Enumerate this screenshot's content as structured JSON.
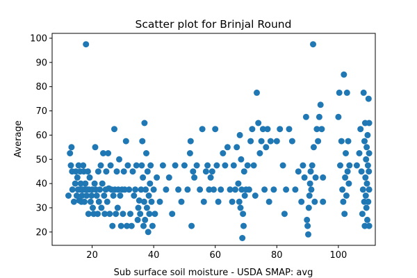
{
  "chart_data": {
    "type": "scatter",
    "title": "Scatter plot for Brinjal Round",
    "xlabel": "Sub surface soil moisture - USDA SMAP: avg",
    "ylabel": "Average",
    "xlim": [
      7,
      112
    ],
    "ylim": [
      14.5,
      102
    ],
    "xticks": [
      20,
      40,
      60,
      80,
      100
    ],
    "yticks": [
      20,
      30,
      40,
      50,
      60,
      70,
      80,
      90,
      100
    ],
    "grid": false,
    "marker_color": "#1f77b4",
    "series": [
      {
        "points": [
          [
            12.3,
            35
          ],
          [
            12.8,
            52.5
          ],
          [
            13.1,
            47.5
          ],
          [
            13.3,
            55
          ],
          [
            13.6,
            37.5
          ],
          [
            13.5,
            45
          ],
          [
            14.1,
            32.5
          ],
          [
            14.5,
            40
          ],
          [
            14.7,
            45
          ],
          [
            15.0,
            35
          ],
          [
            15.2,
            42.5
          ],
          [
            15.4,
            37.5
          ],
          [
            15.6,
            47.5
          ],
          [
            15.8,
            33
          ],
          [
            16.0,
            37.5
          ],
          [
            16.1,
            45
          ],
          [
            16.3,
            40
          ],
          [
            16.5,
            32.5
          ],
          [
            16.7,
            35
          ],
          [
            16.9,
            37.5
          ],
          [
            17.1,
            47.5
          ],
          [
            17.3,
            45
          ],
          [
            17.5,
            32.5
          ],
          [
            17.6,
            37.5
          ],
          [
            17.8,
            40
          ],
          [
            18.0,
            97.5
          ],
          [
            18.2,
            35
          ],
          [
            18.4,
            37.5
          ],
          [
            18.6,
            45
          ],
          [
            18.8,
            27.5
          ],
          [
            19.0,
            37.5
          ],
          [
            19.2,
            42.5
          ],
          [
            19.5,
            32.5
          ],
          [
            19.8,
            35
          ],
          [
            20.0,
            37.5
          ],
          [
            20.2,
            30
          ],
          [
            20.5,
            27.5
          ],
          [
            20.8,
            40
          ],
          [
            21.0,
            55
          ],
          [
            21.2,
            37.5
          ],
          [
            21.5,
            35
          ],
          [
            21.8,
            27.5
          ],
          [
            22.0,
            45
          ],
          [
            22.2,
            32.5
          ],
          [
            22.5,
            37.5
          ],
          [
            22.8,
            47.5
          ],
          [
            23.0,
            30
          ],
          [
            23.3,
            40
          ],
          [
            23.6,
            52.5
          ],
          [
            23.9,
            35
          ],
          [
            24.1,
            27.5
          ],
          [
            24.4,
            37.5
          ],
          [
            24.6,
            45
          ],
          [
            24.9,
            32.5
          ],
          [
            25.2,
            52.5
          ],
          [
            25.4,
            38
          ],
          [
            25.7,
            27.5
          ],
          [
            26.0,
            47.5
          ],
          [
            26.3,
            37.5
          ],
          [
            26.6,
            22.5
          ],
          [
            26.9,
            35
          ],
          [
            27.2,
            62.5
          ],
          [
            27.4,
            37.5
          ],
          [
            27.7,
            27.5
          ],
          [
            28.0,
            45
          ],
          [
            28.3,
            30
          ],
          [
            28.5,
            37.5
          ],
          [
            28.8,
            50
          ],
          [
            29.1,
            35
          ],
          [
            29.4,
            22.5
          ],
          [
            29.7,
            37.5
          ],
          [
            30.0,
            27.5
          ],
          [
            30.3,
            45
          ],
          [
            30.6,
            37.5
          ],
          [
            31.0,
            57.5
          ],
          [
            31.3,
            22.5
          ],
          [
            31.6,
            47.5
          ],
          [
            32.0,
            37.5
          ],
          [
            32.4,
            27.5
          ],
          [
            32.8,
            22.5
          ],
          [
            33.2,
            45
          ],
          [
            33.6,
            35
          ],
          [
            34.0,
            37.5
          ],
          [
            34.4,
            47.5
          ],
          [
            34.8,
            25
          ],
          [
            35.0,
            30
          ],
          [
            35.3,
            33
          ],
          [
            35.6,
            27.5
          ],
          [
            35.9,
            37.5
          ],
          [
            36.1,
            47.5
          ],
          [
            36.3,
            57.5
          ],
          [
            36.5,
            42.5
          ],
          [
            36.7,
            22.5
          ],
          [
            36.9,
            32.5
          ],
          [
            37.0,
            65
          ],
          [
            37.2,
            25
          ],
          [
            37.4,
            37.5
          ],
          [
            37.6,
            52.5
          ],
          [
            37.8,
            30
          ],
          [
            38.0,
            45
          ],
          [
            38.2,
            20
          ],
          [
            38.4,
            35
          ],
          [
            38.6,
            27.5
          ],
          [
            38.8,
            40
          ],
          [
            39.0,
            47.5
          ],
          [
            39.3,
            32.5
          ],
          [
            39.6,
            22.5
          ],
          [
            40.0,
            37.5
          ],
          [
            40.4,
            27.5
          ],
          [
            41.0,
            42.5
          ],
          [
            42.0,
            32.5
          ],
          [
            43.0,
            47.5
          ],
          [
            44.0,
            37.5
          ],
          [
            45.0,
            42.5
          ],
          [
            46.0,
            27.5
          ],
          [
            47.0,
            47.5
          ],
          [
            48.0,
            37.5
          ],
          [
            49.0,
            32.5
          ],
          [
            50.0,
            47.5
          ],
          [
            51.0,
            37.5
          ],
          [
            51.8,
            52.5
          ],
          [
            52.0,
            57.5
          ],
          [
            52.3,
            22.5
          ],
          [
            52.8,
            45
          ],
          [
            53.2,
            42.5
          ],
          [
            54.0,
            47.5
          ],
          [
            55.0,
            37.5
          ],
          [
            55.8,
            62.5
          ],
          [
            56.3,
            32.5
          ],
          [
            57.0,
            45
          ],
          [
            57.5,
            47.5
          ],
          [
            58.0,
            37.5
          ],
          [
            58.5,
            42.5
          ],
          [
            59.0,
            45
          ],
          [
            59.5,
            37.5
          ],
          [
            60.0,
            62.5
          ],
          [
            60.5,
            47.5
          ],
          [
            61.0,
            32.5
          ],
          [
            61.8,
            37.5
          ],
          [
            62.5,
            52.5
          ],
          [
            63.2,
            47.5
          ],
          [
            64.0,
            55
          ],
          [
            64.8,
            37.5
          ],
          [
            65.5,
            32.5
          ],
          [
            66.0,
            47.5
          ],
          [
            66.5,
            37.5
          ],
          [
            67.0,
            55
          ],
          [
            67.5,
            40
          ],
          [
            67.8,
            32.5
          ],
          [
            68.0,
            60
          ],
          [
            68.2,
            30
          ],
          [
            68.4,
            50
          ],
          [
            68.6,
            37.5
          ],
          [
            68.8,
            17.5
          ],
          [
            69.0,
            27.5
          ],
          [
            69.2,
            22.5
          ],
          [
            69.4,
            45
          ],
          [
            69.6,
            35
          ],
          [
            70.0,
            37.5
          ],
          [
            70.5,
            47.5
          ],
          [
            71.0,
            37.5
          ],
          [
            71.5,
            57.5
          ],
          [
            72.0,
            62.5
          ],
          [
            72.5,
            47.5
          ],
          [
            73.0,
            35
          ],
          [
            73.5,
            77.5
          ],
          [
            74.0,
            65
          ],
          [
            74.5,
            52.5
          ],
          [
            75.0,
            57.5
          ],
          [
            75.5,
            62.5
          ],
          [
            76.0,
            37.5
          ],
          [
            76.5,
            55
          ],
          [
            77.0,
            62.5
          ],
          [
            77.5,
            32.5
          ],
          [
            78.0,
            57.5
          ],
          [
            79.0,
            37.5
          ],
          [
            80.0,
            57.5
          ],
          [
            81.0,
            62.5
          ],
          [
            82.0,
            47.5
          ],
          [
            82.5,
            27.5
          ],
          [
            83.0,
            37.5
          ],
          [
            84.0,
            62.5
          ],
          [
            85.0,
            57.5
          ],
          [
            86.0,
            37.5
          ],
          [
            87.0,
            45
          ],
          [
            88.0,
            32.5
          ],
          [
            88.5,
            47.5
          ],
          [
            89.0,
            42.5
          ],
          [
            89.5,
            67.5
          ],
          [
            89.8,
            25
          ],
          [
            90.0,
            22.5
          ],
          [
            90.2,
            19
          ],
          [
            90.4,
            30
          ],
          [
            90.6,
            35
          ],
          [
            90.8,
            40
          ],
          [
            91.0,
            45
          ],
          [
            91.2,
            37.5
          ],
          [
            91.5,
            47.5
          ],
          [
            91.8,
            97.5
          ],
          [
            92.0,
            55
          ],
          [
            92.3,
            32.5
          ],
          [
            92.6,
            42.5
          ],
          [
            93.0,
            62.5
          ],
          [
            93.4,
            57.5
          ],
          [
            93.8,
            67.5
          ],
          [
            94.2,
            72.5
          ],
          [
            94.6,
            62.5
          ],
          [
            95.0,
            42.5
          ],
          [
            95.0,
            32.5
          ],
          [
            100.0,
            67.5
          ],
          [
            100.3,
            77.5
          ],
          [
            100.6,
            47.5
          ],
          [
            101.0,
            57.5
          ],
          [
            101.3,
            37.5
          ],
          [
            101.6,
            32.5
          ],
          [
            101.8,
            85
          ],
          [
            102.0,
            27.5
          ],
          [
            102.2,
            42.5
          ],
          [
            102.4,
            52.5
          ],
          [
            102.6,
            35
          ],
          [
            102.8,
            77.5
          ],
          [
            103.0,
            45
          ],
          [
            103.2,
            57.5
          ],
          [
            103.4,
            40
          ],
          [
            103.6,
            47.5
          ],
          [
            106.0,
            47.5
          ],
          [
            106.8,
            52.5
          ],
          [
            107.2,
            62.5
          ],
          [
            107.5,
            45
          ],
          [
            107.8,
            27.5
          ],
          [
            108.0,
            37.5
          ],
          [
            108.2,
            77.5
          ],
          [
            108.4,
            32.5
          ],
          [
            108.5,
            57.5
          ],
          [
            108.6,
            22.5
          ],
          [
            108.7,
            65
          ],
          [
            108.8,
            42.5
          ],
          [
            108.9,
            35
          ],
          [
            109.0,
            50
          ],
          [
            109.1,
            30
          ],
          [
            109.2,
            55
          ],
          [
            109.3,
            40
          ],
          [
            109.4,
            25
          ],
          [
            109.5,
            60
          ],
          [
            109.6,
            47.5
          ],
          [
            109.7,
            32.5
          ],
          [
            109.8,
            75
          ],
          [
            109.9,
            45
          ],
          [
            110.0,
            65
          ],
          [
            110.0,
            22.5
          ],
          [
            110.0,
            37.5
          ],
          [
            110.0,
            52.5
          ]
        ]
      }
    ]
  }
}
